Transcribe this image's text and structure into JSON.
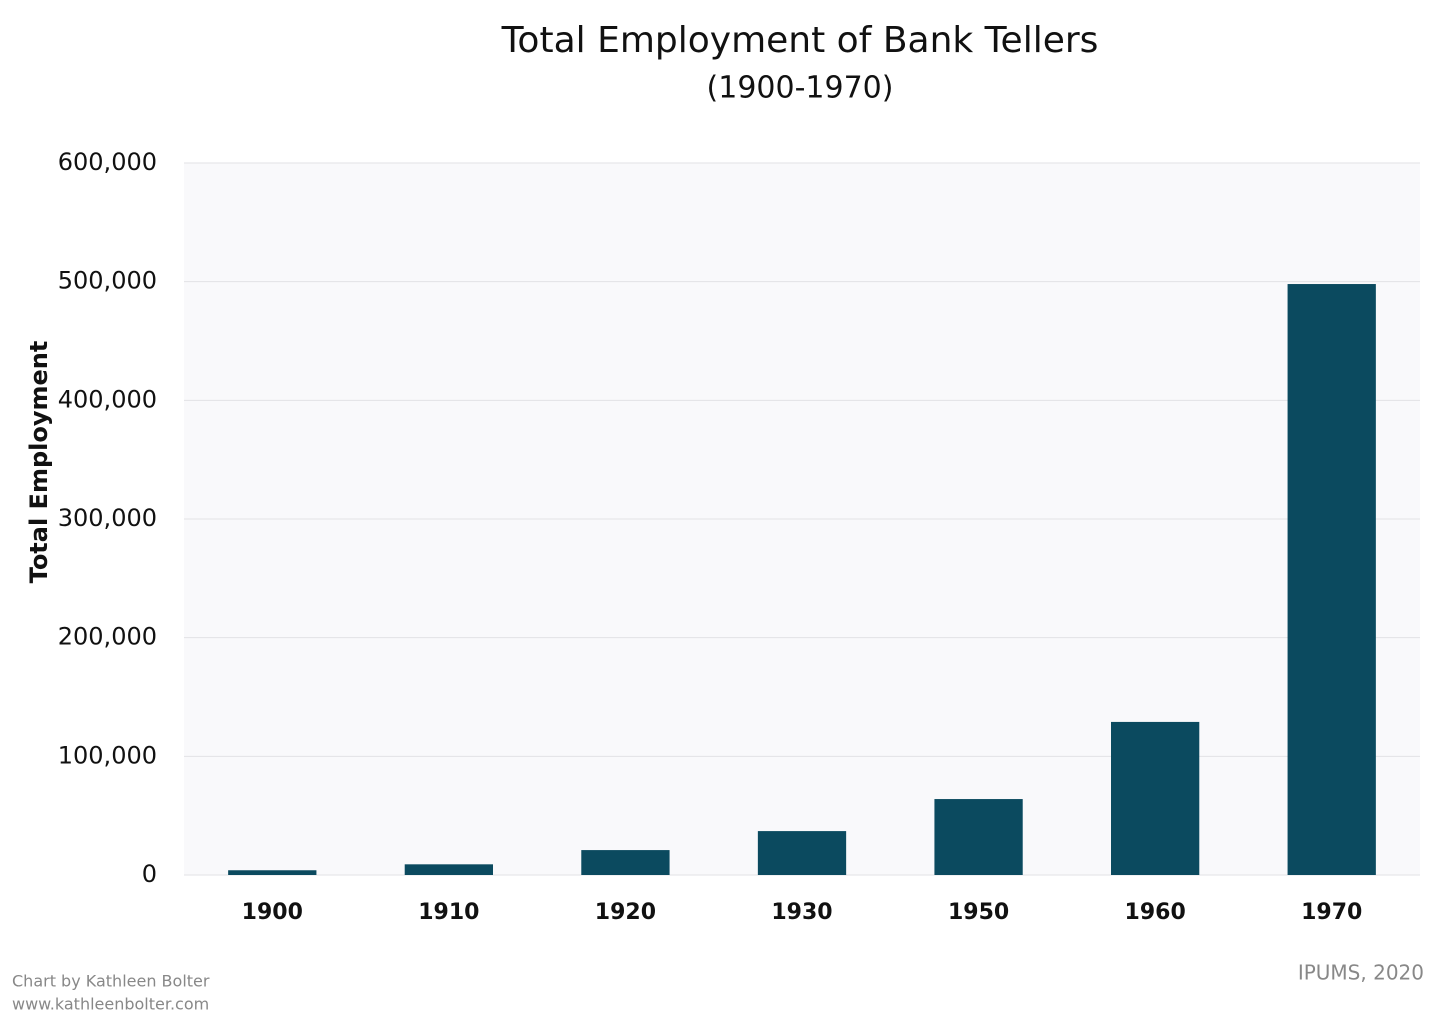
{
  "chart_data": {
    "type": "bar",
    "title": "Total Employment of Bank Tellers",
    "subtitle": "(1900-1970)",
    "y_label": "Total Employment",
    "categories": [
      "1900",
      "1910",
      "1920",
      "1930",
      "1950",
      "1960",
      "1970"
    ],
    "values": [
      4000,
      9000,
      21000,
      37000,
      64000,
      129000,
      498000
    ],
    "color": "#0b4a5f",
    "ylim": [
      0,
      600000
    ],
    "yticks": [
      0,
      {
        "value": 100000,
        "label": "100,000"
      },
      {
        "value": 200000,
        "label": "200,000"
      },
      {
        "value": 300000,
        "label": "300,000"
      },
      {
        "value": 400000,
        "label": "400,000"
      },
      {
        "value": 500000,
        "label": "500,000"
      },
      {
        "value": 600000,
        "label": "600,000"
      }
    ],
    "grid": true,
    "credit": [
      "Chart by Kathleen Bolter",
      "www.kathleenbolter.com"
    ],
    "source": "IPUMS, 2020"
  }
}
